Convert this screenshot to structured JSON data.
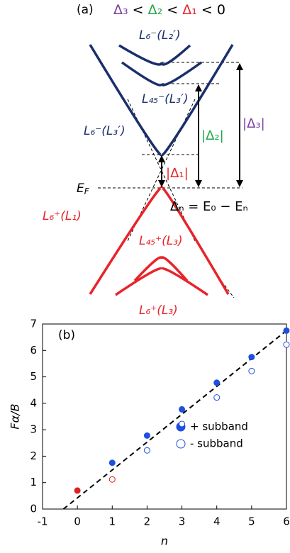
{
  "diagram": {
    "panel_label": "(a)",
    "condition": [
      "Δ₃",
      " < ",
      "Δ₂",
      " < ",
      "Δ₁",
      " < 0"
    ],
    "band_labels": [
      "L₆⁻(L₂′)",
      "L₄₅⁻(L₃′)",
      "L₆⁻(L₃′)",
      "L₆⁺(L₁)",
      "L₄₅⁺(L₃)",
      "L₆⁺(L₃)"
    ],
    "fermi_level": {
      "base": "E",
      "sub": "F"
    },
    "gaps": [
      "|Δ₁|",
      "|Δ₂|",
      "|Δ₃|"
    ],
    "definition": "Δₙ = E₀ − Eₙ"
  },
  "chart_data": {
    "type": "scatter",
    "panel_label": "(b)",
    "x_label": "n",
    "y_label": "Fα/B",
    "xlim": [
      -1,
      6
    ],
    "ylim": [
      0,
      7
    ],
    "xticks": [
      -1,
      0,
      1,
      2,
      3,
      4,
      5,
      6
    ],
    "yticks": [
      0,
      1,
      2,
      3,
      4,
      5,
      6,
      7
    ],
    "series": [
      {
        "name": "+ subband",
        "color": "#1f4fe0",
        "filled": true,
        "x": [
          0,
          1,
          2,
          3,
          4,
          5,
          6
        ],
        "values": [
          0.7,
          1.75,
          2.78,
          3.77,
          4.78,
          5.75,
          6.75
        ],
        "colors": [
          "#e02020",
          "#1f4fe0",
          "#1f4fe0",
          "#1f4fe0",
          "#1f4fe0",
          "#1f4fe0",
          "#1f4fe0"
        ]
      },
      {
        "name": "- subband",
        "color": "#1f4fe0",
        "filled": false,
        "x": [
          1,
          2,
          3,
          4,
          5,
          6
        ],
        "values": [
          1.12,
          2.22,
          3.22,
          4.22,
          5.22,
          6.22
        ],
        "colors": [
          "#e02020",
          "#1f4fe0",
          "#1f4fe0",
          "#1f4fe0",
          "#1f4fe0",
          "#1f4fe0"
        ]
      }
    ],
    "fit": {
      "x": [
        -0.4,
        6
      ],
      "values": [
        0,
        6.75
      ]
    }
  }
}
